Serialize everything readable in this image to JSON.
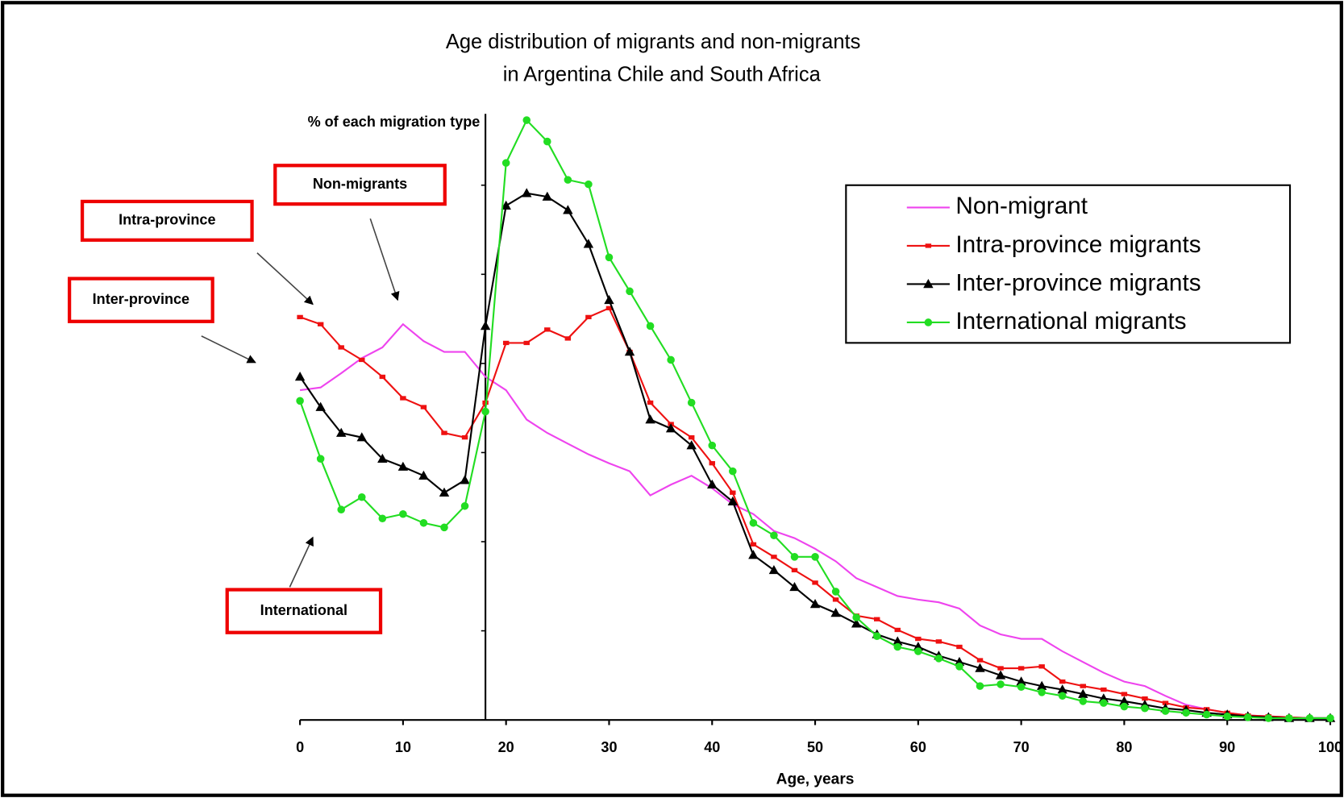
{
  "chart_data": {
    "type": "line",
    "title": [
      "Age distribution of migrants and non-migrants",
      "in Argentina Chile and South Africa"
    ],
    "y_label": "% of each migration type",
    "x_label": "Age, years",
    "x": [
      0,
      2,
      4,
      6,
      8,
      10,
      12,
      14,
      16,
      18,
      20,
      22,
      24,
      26,
      28,
      30,
      32,
      34,
      36,
      38,
      40,
      42,
      44,
      46,
      48,
      50,
      52,
      54,
      56,
      58,
      60,
      62,
      64,
      66,
      68,
      70,
      72,
      74,
      76,
      78,
      80,
      82,
      84,
      86,
      88,
      90,
      92,
      94,
      96,
      98,
      100
    ],
    "xlim": [
      0,
      100
    ],
    "xticks": [
      0,
      10,
      20,
      30,
      40,
      50,
      60,
      70,
      80,
      90,
      100
    ],
    "ylim": [
      0,
      6.8
    ],
    "yticks": [
      0,
      1,
      2,
      3,
      4,
      5,
      6
    ],
    "y_axis_at": 18,
    "legend": "upper right",
    "series": [
      {
        "name": "Non-migrant",
        "color": "#ee44ee",
        "marker": "none",
        "values": [
          3.7,
          3.73,
          3.89,
          4.06,
          4.18,
          4.44,
          4.25,
          4.13,
          4.13,
          3.85,
          3.7,
          3.37,
          3.22,
          3.1,
          2.98,
          2.88,
          2.79,
          2.52,
          2.64,
          2.74,
          2.6,
          2.42,
          2.31,
          2.12,
          2.04,
          1.92,
          1.78,
          1.59,
          1.49,
          1.39,
          1.35,
          1.32,
          1.25,
          1.06,
          0.96,
          0.91,
          0.91,
          0.77,
          0.65,
          0.53,
          0.43,
          0.38,
          0.27,
          0.17,
          0.12,
          0.08,
          0.05,
          0.04,
          0.03,
          0.02,
          0.02
        ]
      },
      {
        "name": "Intra-province migrants",
        "color": "#ee1111",
        "marker": "square",
        "values": [
          4.52,
          4.44,
          4.18,
          4.04,
          3.85,
          3.61,
          3.51,
          3.22,
          3.17,
          3.56,
          4.23,
          4.23,
          4.38,
          4.28,
          4.52,
          4.62,
          4.13,
          3.56,
          3.32,
          3.17,
          2.88,
          2.55,
          1.97,
          1.83,
          1.68,
          1.54,
          1.35,
          1.17,
          1.13,
          1.01,
          0.91,
          0.88,
          0.82,
          0.67,
          0.58,
          0.58,
          0.6,
          0.43,
          0.38,
          0.34,
          0.29,
          0.24,
          0.19,
          0.14,
          0.12,
          0.08,
          0.05,
          0.04,
          0.03,
          0.02,
          0.02
        ]
      },
      {
        "name": "Inter-province migrants",
        "color": "#000000",
        "marker": "triangle",
        "values": [
          3.85,
          3.51,
          3.22,
          3.17,
          2.93,
          2.84,
          2.74,
          2.55,
          2.69,
          4.42,
          5.77,
          5.91,
          5.87,
          5.72,
          5.34,
          4.71,
          4.13,
          3.37,
          3.27,
          3.08,
          2.64,
          2.45,
          1.85,
          1.68,
          1.49,
          1.3,
          1.2,
          1.08,
          0.96,
          0.88,
          0.82,
          0.72,
          0.65,
          0.58,
          0.5,
          0.43,
          0.38,
          0.34,
          0.29,
          0.24,
          0.21,
          0.17,
          0.13,
          0.11,
          0.08,
          0.06,
          0.04,
          0.03,
          0.02,
          0.02,
          0.02
        ]
      },
      {
        "name": "International migrants",
        "color": "#22dd22",
        "marker": "circle",
        "values": [
          3.58,
          2.93,
          2.36,
          2.5,
          2.26,
          2.31,
          2.21,
          2.16,
          2.4,
          3.46,
          6.25,
          6.73,
          6.49,
          6.06,
          6.01,
          5.19,
          4.81,
          4.42,
          4.04,
          3.56,
          3.08,
          2.79,
          2.21,
          2.07,
          1.83,
          1.83,
          1.44,
          1.15,
          0.94,
          0.82,
          0.77,
          0.69,
          0.6,
          0.38,
          0.4,
          0.37,
          0.31,
          0.27,
          0.21,
          0.19,
          0.15,
          0.13,
          0.1,
          0.08,
          0.06,
          0.04,
          0.03,
          0.02,
          0.02,
          0.02,
          0.02
        ]
      }
    ],
    "annotations": [
      "Non-migrants",
      "Intra-province",
      "Inter-province",
      "International"
    ]
  }
}
